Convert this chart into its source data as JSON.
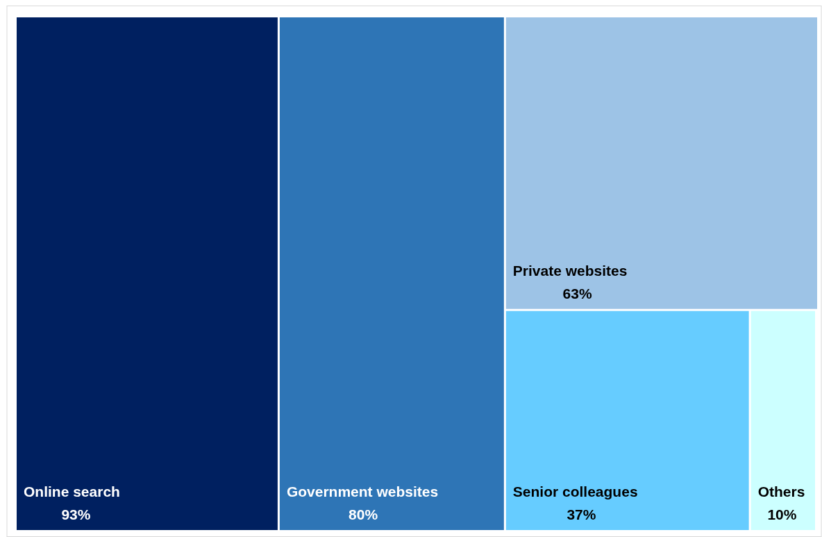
{
  "chart_data": {
    "type": "other",
    "categories": [
      "Online search",
      "Government websites",
      "Private websites",
      "Senior colleagues",
      "Others"
    ],
    "values": [
      93,
      80,
      63,
      37,
      10
    ],
    "colors": [
      "#002060",
      "#2e75b6",
      "#9dc3e6",
      "#66ccff",
      "#ccffff"
    ],
    "value_labels": [
      "93%",
      "80%",
      "63%",
      "37%",
      "10%"
    ]
  }
}
